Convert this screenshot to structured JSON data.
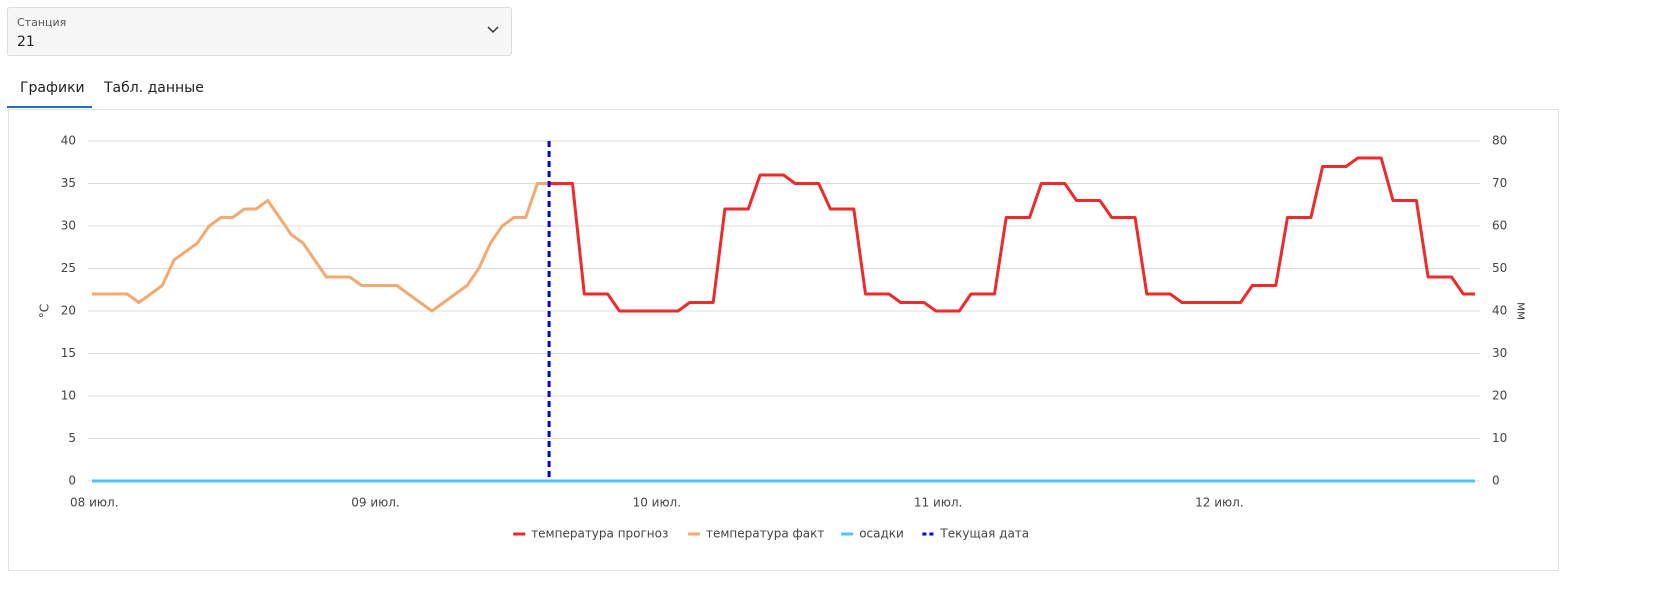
{
  "station": {
    "label": "Станция",
    "value": "21"
  },
  "tabs": [
    "Графики",
    "Табл. данные"
  ],
  "chart_data": {
    "type": "line",
    "y_label": "°C",
    "y2_label": "мм",
    "categories": [
      "08 июл.",
      null,
      null,
      null,
      null,
      null,
      null,
      null,
      null,
      null,
      null,
      null,
      null,
      null,
      null,
      null,
      null,
      null,
      null,
      null,
      null,
      null,
      null,
      null,
      "09 июл.",
      null,
      null,
      null,
      null,
      null,
      null,
      null,
      null,
      null,
      null,
      null,
      null,
      null,
      null,
      null,
      null,
      null,
      null,
      null,
      null,
      null,
      null,
      null,
      "10 июл.",
      null,
      null,
      null,
      null,
      null,
      null,
      null,
      null,
      null,
      null,
      null,
      null,
      null,
      null,
      null,
      null,
      null,
      null,
      null,
      null,
      null,
      null,
      null,
      "11 июл.",
      null,
      null,
      null,
      null,
      null,
      null,
      null,
      null,
      null,
      null,
      null,
      null,
      null,
      null,
      null,
      null,
      null,
      null,
      null,
      null,
      null,
      null,
      null,
      "12 июл.",
      null,
      null,
      null,
      null,
      null,
      null,
      null,
      null,
      null,
      null,
      null,
      null,
      null,
      null,
      null,
      null,
      null,
      null,
      null,
      null,
      null,
      null
    ],
    "series": [
      {
        "name": "температура прогноз",
        "color": "#ee2a2a",
        "values": [
          null,
          null,
          null,
          null,
          null,
          null,
          null,
          null,
          null,
          null,
          null,
          null,
          null,
          null,
          null,
          null,
          null,
          null,
          null,
          null,
          null,
          null,
          null,
          null,
          null,
          null,
          null,
          null,
          null,
          null,
          null,
          null,
          null,
          null,
          null,
          null,
          null,
          null,
          null,
          35,
          35,
          35,
          22,
          22,
          22,
          20,
          20,
          20,
          20,
          20,
          20,
          21,
          21,
          21,
          32,
          32,
          32,
          36,
          36,
          36,
          35,
          35,
          35,
          32,
          32,
          32,
          22,
          22,
          22,
          21,
          21,
          21,
          20,
          20,
          20,
          22,
          22,
          22,
          31,
          31,
          31,
          35,
          35,
          35,
          33,
          33,
          33,
          31,
          31,
          31,
          22,
          22,
          22,
          21,
          21,
          21,
          21,
          21,
          21,
          23,
          23,
          23,
          31,
          31,
          31,
          37,
          37,
          37,
          38,
          38,
          38,
          33,
          33,
          33,
          24,
          24,
          24,
          22,
          22
        ]
      },
      {
        "name": "температура факт",
        "color": "#f4a971",
        "values": [
          22,
          22,
          22,
          22,
          21,
          22,
          23,
          26,
          27,
          28,
          30,
          31,
          31,
          32,
          32,
          33,
          31,
          29,
          28,
          26,
          24,
          24,
          24,
          23,
          23,
          23,
          23,
          22,
          21,
          20,
          21,
          22,
          23,
          25,
          28,
          30,
          31,
          31,
          35,
          35,
          null,
          null,
          null,
          null,
          null,
          null,
          null,
          null,
          null,
          null,
          null,
          null,
          null,
          null,
          null,
          null,
          null,
          null,
          null,
          null,
          null,
          null,
          null,
          null,
          null,
          null,
          null,
          null,
          null,
          null,
          null,
          null,
          null,
          null,
          null,
          null,
          null,
          null,
          null,
          null,
          null,
          null,
          null,
          null,
          null,
          null,
          null,
          null,
          null,
          null,
          null,
          null,
          null,
          null,
          null,
          null,
          null,
          null,
          null,
          null,
          null,
          null,
          null,
          null,
          null,
          null,
          null,
          null,
          null,
          null,
          null,
          null,
          null,
          null,
          null,
          null,
          null,
          null,
          null
        ]
      },
      {
        "name": "осадки",
        "color": "#4fc3f7",
        "axis": "y2",
        "values": [
          0,
          0,
          0,
          0,
          0,
          0,
          0,
          0,
          0,
          0,
          0,
          0,
          0,
          0,
          0,
          0,
          0,
          0,
          0,
          0,
          0,
          0,
          0,
          0,
          0,
          0,
          0,
          0,
          0,
          0,
          0,
          0,
          0,
          0,
          0,
          0,
          0,
          0,
          0,
          0,
          0,
          0,
          0,
          0,
          0,
          0,
          0,
          0,
          0,
          0,
          0,
          0,
          0,
          0,
          0,
          0,
          0,
          0,
          0,
          0,
          0,
          0,
          0,
          0,
          0,
          0,
          0,
          0,
          0,
          0,
          0,
          0,
          0,
          0,
          0,
          0,
          0,
          0,
          0,
          0,
          0,
          0,
          0,
          0,
          0,
          0,
          0,
          0,
          0,
          0,
          0,
          0,
          0,
          0,
          0,
          0,
          0,
          0,
          0,
          0,
          0,
          0,
          0,
          0,
          0,
          0,
          0,
          0,
          0,
          0,
          0,
          0,
          0,
          0,
          0,
          0,
          0,
          0,
          0
        ]
      },
      {
        "name": "Текущая дата",
        "color": "#0000dd",
        "type": "vline",
        "at": 39
      }
    ],
    "ylim": [
      0,
      40
    ],
    "yticks": [
      0,
      5,
      10,
      15,
      20,
      25,
      30,
      35,
      40
    ],
    "y2lim": [
      0,
      80
    ],
    "y2ticks": [
      0,
      10,
      20,
      30,
      40,
      50,
      60,
      70,
      80
    ],
    "grid": true,
    "legend": "bottom"
  }
}
